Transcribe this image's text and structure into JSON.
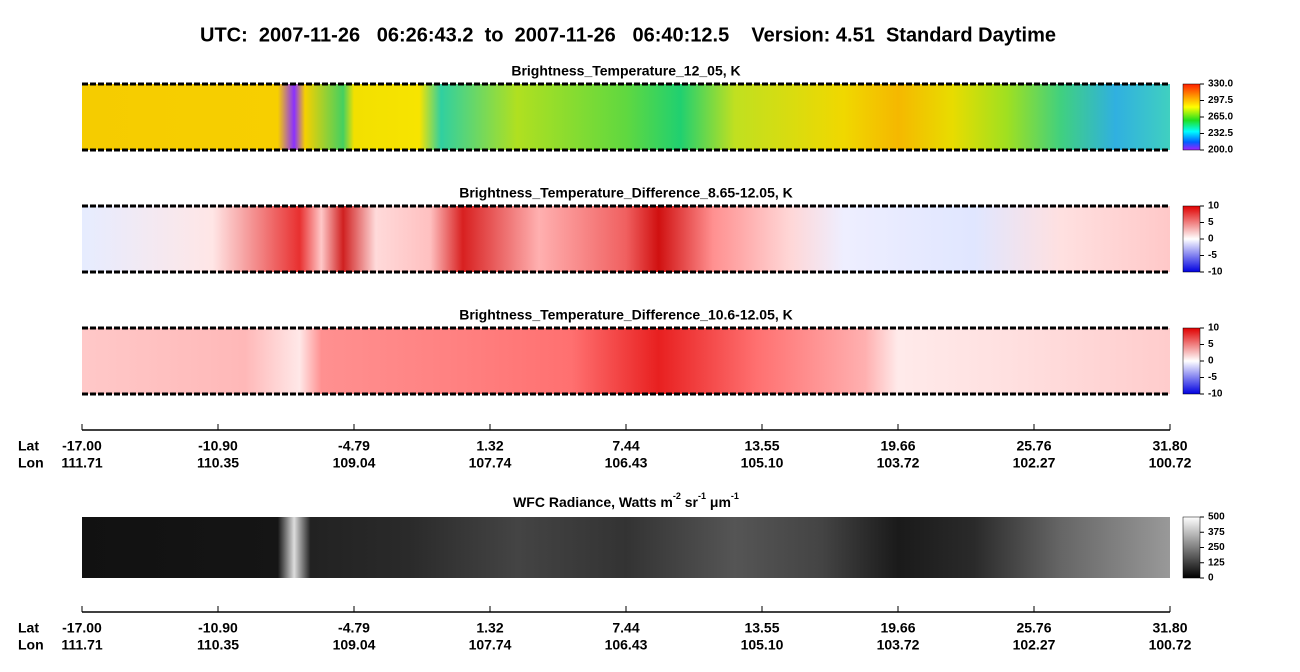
{
  "title": "UTC:  2007-11-26   06:26:43.2  to  2007-11-26   06:40:12.5    Version: 4.51  Standard Daytime",
  "panels": [
    {
      "title": "Brightness_Temperature_12_05, K",
      "colorbar_ticks": [
        "330.0",
        "297.5",
        "265.0",
        "232.5",
        "200.0"
      ]
    },
    {
      "title": "Brightness_Temperature_Difference_8.65-12.05, K",
      "colorbar_ticks": [
        "10",
        "5",
        "0",
        "-5",
        "-10"
      ]
    },
    {
      "title": "Brightness_Temperature_Difference_10.6-12.05, K",
      "colorbar_ticks": [
        "10",
        "5",
        "0",
        "-5",
        "-10"
      ]
    }
  ],
  "wfc": {
    "title_parts": [
      "WFC Radiance, Watts m",
      "-2",
      " sr",
      "-1",
      " μm",
      "-1"
    ],
    "colorbar_ticks": [
      "500",
      "375",
      "250",
      "125",
      "0"
    ]
  },
  "axes": [
    {
      "lat_label": "Lat",
      "lon_label": "Lon",
      "lat": [
        "-17.00",
        "-10.90",
        "-4.79",
        "1.32",
        "7.44",
        "13.55",
        "19.66",
        "25.76",
        "31.80"
      ],
      "lon": [
        "111.71",
        "110.35",
        "109.04",
        "107.74",
        "106.43",
        "105.10",
        "103.72",
        "102.27",
        "100.72"
      ]
    },
    {
      "lat_label": "Lat",
      "lon_label": "Lon",
      "lat": [
        "-17.00",
        "-10.90",
        "-4.79",
        "1.32",
        "7.44",
        "13.55",
        "19.66",
        "25.76",
        "31.80"
      ],
      "lon": [
        "111.71",
        "110.35",
        "109.04",
        "107.74",
        "106.43",
        "105.10",
        "103.72",
        "102.27",
        "100.72"
      ]
    }
  ]
}
